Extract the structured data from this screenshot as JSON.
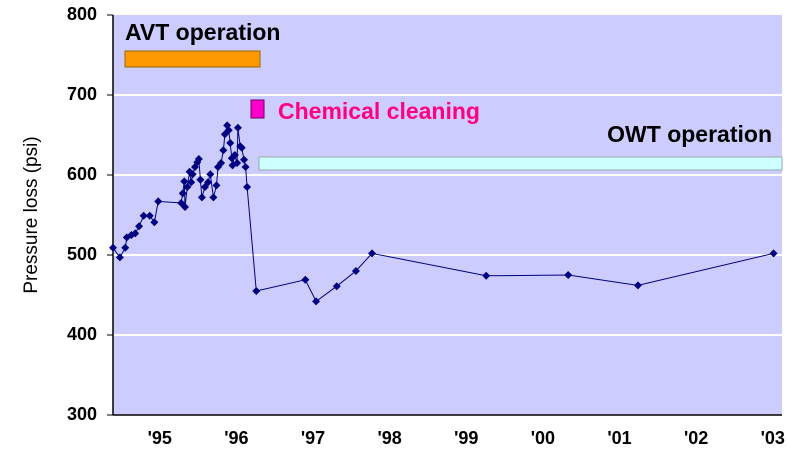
{
  "chart_data": {
    "type": "line",
    "y_label": "Pressure loss (psi)",
    "annotations": [
      "AVT operation",
      "Chemical cleaning",
      "OWT operation"
    ],
    "color": "#000080",
    "x": [
      1994.39,
      1994.48,
      1994.55,
      1994.57,
      1994.63,
      1994.68,
      1994.73,
      1994.79,
      1994.87,
      1994.93,
      1994.98,
      1995.28,
      1995.3,
      1995.32,
      1995.33,
      1995.36,
      1995.39,
      1995.41,
      1995.43,
      1995.46,
      1995.49,
      1995.51,
      1995.53,
      1995.55,
      1995.59,
      1995.63,
      1995.66,
      1995.7,
      1995.74,
      1995.76,
      1995.8,
      1995.83,
      1995.85,
      1995.88,
      1995.9,
      1995.92,
      1995.94,
      1995.95,
      1995.98,
      1996.01,
      1996.02,
      1996.05,
      1996.07,
      1996.1,
      1996.12,
      1996.14,
      1996.26,
      1996.9,
      1997.04,
      1997.31,
      1997.56,
      1997.77,
      1999.26,
      2000.33,
      2001.24,
      2003.01
    ],
    "values": [
      509,
      497,
      509,
      522,
      525,
      527,
      536,
      549,
      549,
      541,
      567,
      565,
      577,
      592,
      560,
      585,
      604,
      591,
      601,
      610,
      616,
      620,
      594,
      572,
      585,
      591,
      601,
      572,
      587,
      610,
      615,
      631,
      651,
      662,
      656,
      640,
      621,
      612,
      625,
      615,
      659,
      636,
      634,
      619,
      610,
      585,
      455,
      469,
      442,
      461,
      480,
      502,
      474,
      475,
      462,
      502
    ],
    "xlim": [
      1994.39,
      2003.12
    ],
    "xticks": [
      {
        "value": 1995,
        "label": "'95"
      },
      {
        "value": 1996,
        "label": "'96"
      },
      {
        "value": 1997,
        "label": "'97"
      },
      {
        "value": 1998,
        "label": "'98"
      },
      {
        "value": 1999,
        "label": "'99"
      },
      {
        "value": 2000,
        "label": "'00"
      },
      {
        "value": 2001,
        "label": "'01"
      },
      {
        "value": 2002,
        "label": "'02"
      },
      {
        "value": 2003,
        "label": "'03"
      }
    ],
    "ylim": [
      300,
      800
    ],
    "yticks": [
      300,
      400,
      500,
      600,
      700,
      800
    ],
    "grid": true
  }
}
